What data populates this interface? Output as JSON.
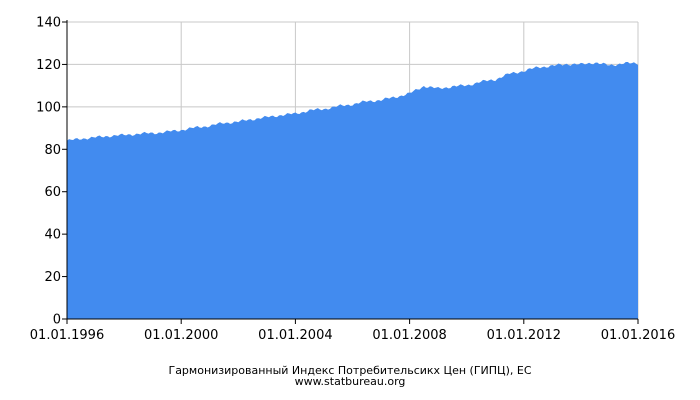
{
  "chart_data": {
    "type": "area",
    "title": "Гармонизированный Индекс Потребительсикх Цен (ГИПЦ), ЕС",
    "source": "www.statbureau.org",
    "xlabel": "",
    "ylabel": "",
    "x_range": [
      "1996-01-01",
      "2016-01-01"
    ],
    "x_ticks": [
      "01.01.1996",
      "01.01.2000",
      "01.01.2004",
      "01.01.2008",
      "01.01.2012",
      "01.01.2016"
    ],
    "ylim": [
      0,
      140
    ],
    "y_ticks": [
      0,
      20,
      40,
      60,
      80,
      100,
      120,
      140
    ],
    "grid": true,
    "legend": "none",
    "color": "#428BEF",
    "series": [
      {
        "points": [
          [
            "1996-01-01",
            84.0
          ],
          [
            "1996-07-01",
            85.0
          ],
          [
            "1997-01-01",
            85.6
          ],
          [
            "1997-07-01",
            86.3
          ],
          [
            "1998-01-01",
            86.7
          ],
          [
            "1998-07-01",
            87.3
          ],
          [
            "1999-01-01",
            87.6
          ],
          [
            "1999-07-01",
            88.2
          ],
          [
            "2000-01-01",
            89.1
          ],
          [
            "2000-07-01",
            90.2
          ],
          [
            "2001-01-01",
            91.1
          ],
          [
            "2001-07-01",
            92.4
          ],
          [
            "2002-01-01",
            93.0
          ],
          [
            "2002-07-01",
            94.2
          ],
          [
            "2003-01-01",
            95.1
          ],
          [
            "2003-07-01",
            96.1
          ],
          [
            "2004-01-01",
            96.8
          ],
          [
            "2004-07-01",
            98.3
          ],
          [
            "2005-01-01",
            99.0
          ],
          [
            "2005-07-01",
            100.3
          ],
          [
            "2006-01-01",
            101.2
          ],
          [
            "2006-07-01",
            102.6
          ],
          [
            "2007-01-01",
            103.2
          ],
          [
            "2007-07-01",
            104.6
          ],
          [
            "2008-01-01",
            106.3
          ],
          [
            "2008-07-01",
            109.8
          ],
          [
            "2009-01-01",
            108.6
          ],
          [
            "2009-07-01",
            109.6
          ],
          [
            "2010-01-01",
            110.1
          ],
          [
            "2010-07-01",
            111.8
          ],
          [
            "2011-01-01",
            112.9
          ],
          [
            "2011-07-01",
            115.6
          ],
          [
            "2012-01-01",
            116.9
          ],
          [
            "2012-07-01",
            118.7
          ],
          [
            "2013-01-01",
            119.3
          ],
          [
            "2013-07-01",
            120.2
          ],
          [
            "2014-01-01",
            120.0
          ],
          [
            "2014-07-01",
            120.9
          ],
          [
            "2015-01-01",
            119.5
          ],
          [
            "2015-07-01",
            120.6
          ],
          [
            "2016-01-01",
            120.4
          ]
        ]
      }
    ]
  }
}
